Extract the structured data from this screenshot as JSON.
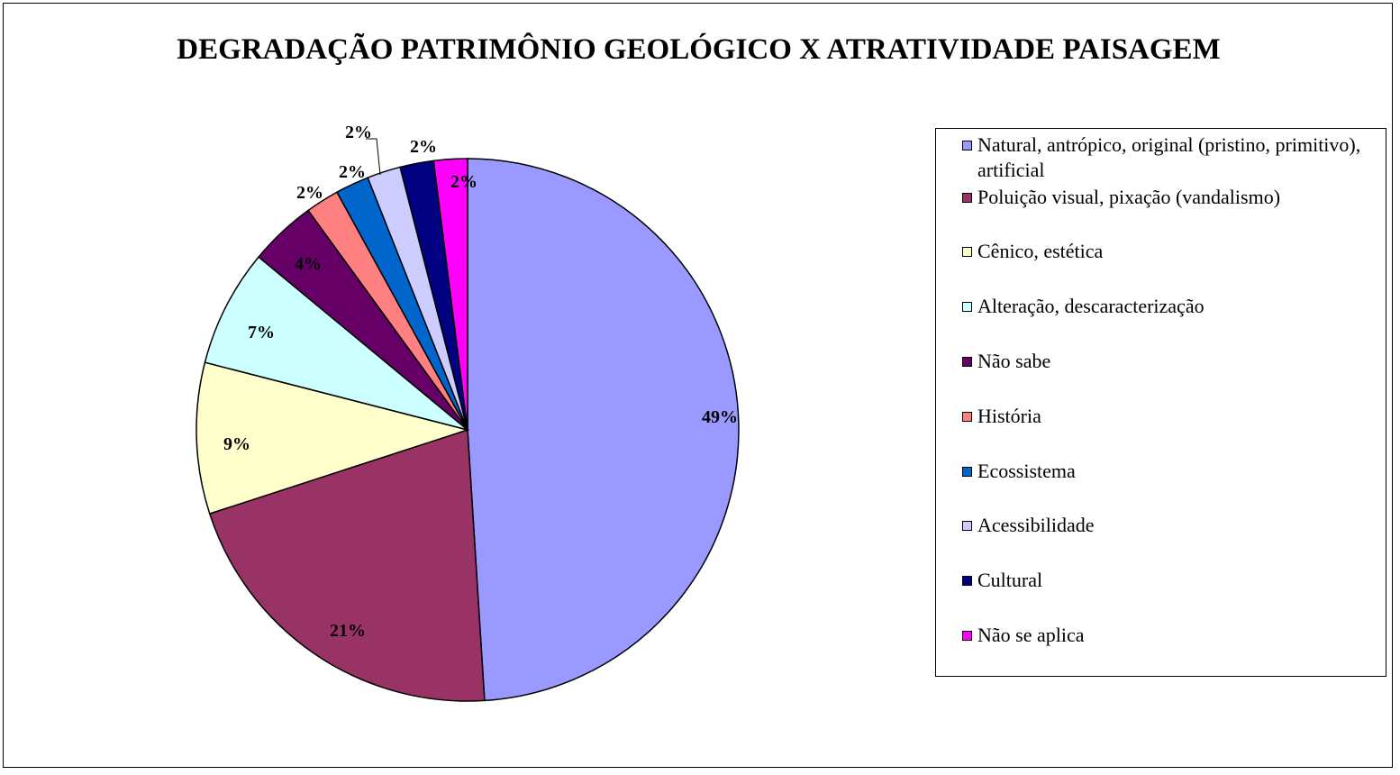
{
  "chart_data": {
    "type": "pie",
    "title": "DEGRADAÇÃO PATRIMÔNIO GEOLÓGICO X ATRATIVIDADE PAISAGEM",
    "slices": [
      {
        "name": "Natural, antrópico, original (pristino, primitivo), artificial",
        "value": 49,
        "label": "49%",
        "color": "#9999FF"
      },
      {
        "name": "Poluição visual, pixação (vandalismo)",
        "value": 21,
        "label": "21%",
        "color": "#993366"
      },
      {
        "name": "Cênico, estética",
        "value": 9,
        "label": "9%",
        "color": "#FFFFCC"
      },
      {
        "name": "Alteração, descaracterização",
        "value": 7,
        "label": "7%",
        "color": "#CCFFFF"
      },
      {
        "name": "Não sabe",
        "value": 4,
        "label": "4%",
        "color": "#660066"
      },
      {
        "name": "História",
        "value": 2,
        "label": "2%",
        "color": "#FF8080"
      },
      {
        "name": "Ecossistema",
        "value": 2,
        "label": "2%",
        "color": "#0066CC"
      },
      {
        "name": "Acessibilidade",
        "value": 2,
        "label": "2%",
        "color": "#CCCCFF"
      },
      {
        "name": "Cultural",
        "value": 2,
        "label": "2%",
        "color": "#000080"
      },
      {
        "name": "Não se aplica",
        "value": 2,
        "label": "2%",
        "color": "#FF00FF"
      }
    ],
    "legend_position": "right"
  }
}
